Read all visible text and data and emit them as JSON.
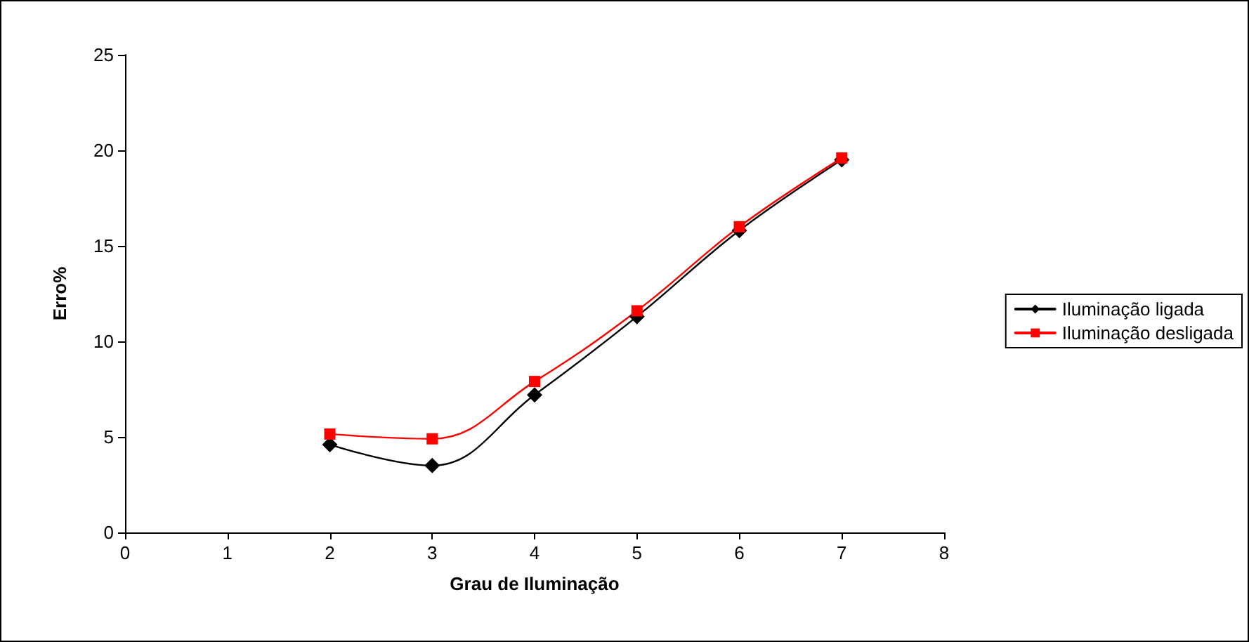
{
  "chart_data": {
    "type": "line",
    "xlabel": "Grau de Iluminação",
    "ylabel": "Erro%",
    "x": [
      2,
      3,
      4,
      5,
      6,
      7
    ],
    "series": [
      {
        "name": "Iluminação ligada",
        "color": "#000000",
        "marker": "diamond",
        "values": [
          4.6,
          3.5,
          7.2,
          11.3,
          15.8,
          19.5
        ]
      },
      {
        "name": "Iluminação desligada",
        "color": "#ff0000",
        "marker": "square",
        "values": [
          5.15,
          4.9,
          7.9,
          11.6,
          16.0,
          19.6
        ]
      }
    ],
    "xlim": [
      0,
      8
    ],
    "xticks": [
      0,
      1,
      2,
      3,
      4,
      5,
      6,
      7,
      8
    ],
    "ylim": [
      0,
      25
    ],
    "yticks": [
      0,
      5,
      10,
      15,
      20,
      25
    ],
    "grid": false,
    "legend": "right"
  }
}
